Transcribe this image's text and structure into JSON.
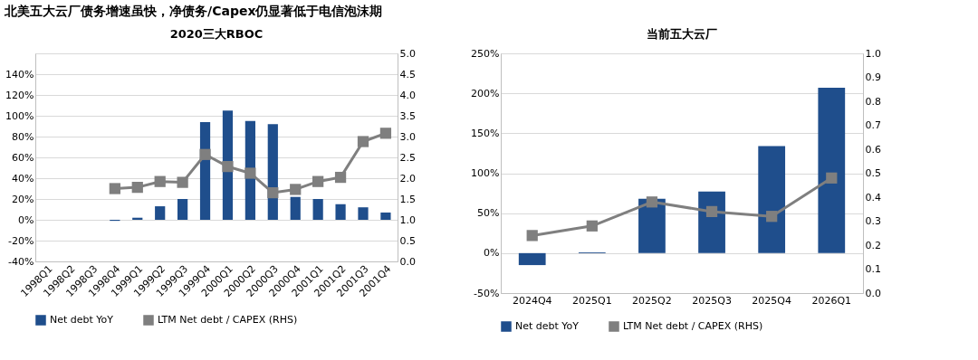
{
  "chart_data": [
    {
      "type": "bar",
      "title": "2020三大RBOC",
      "annotations": [
        "北美五大云厂债务增速虽快，净债务/Capex仍显著低于电信泡沫期"
      ],
      "categories": [
        "1998Q1",
        "1998Q2",
        "1998Q3",
        "1998Q4",
        "1999Q1",
        "1999Q2",
        "1999Q3",
        "1999Q4",
        "2000Q1",
        "2000Q2",
        "2000Q3",
        "2000Q4",
        "2001Q1",
        "2001Q2",
        "2001Q3",
        "2001Q4"
      ],
      "series": [
        {
          "name": "Net debt YoY",
          "color": "#1f4e8c",
          "values": [
            0,
            0,
            0,
            -1,
            2,
            13,
            20,
            94,
            105,
            95,
            92,
            22,
            20,
            15,
            12,
            7
          ]
        },
        {
          "name": "LTM Net debt / CAPEX (RHS)",
          "type": "line",
          "axis": "y2",
          "color": "#7f7f7f",
          "values": [
            null,
            null,
            null,
            1.75,
            1.78,
            1.92,
            1.9,
            2.57,
            2.28,
            2.12,
            1.65,
            1.73,
            1.92,
            2.02,
            2.88,
            3.08
          ]
        }
      ],
      "ylim": [
        -40,
        160
      ],
      "yticks": [
        {
          "value": -40,
          "label": "-40%"
        },
        {
          "value": -20,
          "label": "-20%"
        },
        {
          "value": 0,
          "label": "0%"
        },
        {
          "value": 20,
          "label": "20%"
        },
        {
          "value": 40,
          "label": "40%"
        },
        {
          "value": 60,
          "label": "60%"
        },
        {
          "value": 80,
          "label": "80%"
        },
        {
          "value": 100,
          "label": "100%"
        },
        {
          "value": 120,
          "label": "120%"
        },
        {
          "value": 140,
          "label": "140%"
        },
        {
          "value": 160,
          "label": null
        }
      ],
      "y2lim": [
        0,
        5
      ],
      "y2ticks": [
        {
          "value": 0,
          "label": "0.0"
        },
        {
          "value": 0.5,
          "label": "0.5"
        },
        {
          "value": 1,
          "label": "1.0"
        },
        {
          "value": 1.5,
          "label": "1.5"
        },
        {
          "value": 2,
          "label": "2.0"
        },
        {
          "value": 2.5,
          "label": "2.5"
        },
        {
          "value": 3,
          "label": "3.0"
        },
        {
          "value": 3.5,
          "label": "3.5"
        },
        {
          "value": 4,
          "label": "4.0"
        },
        {
          "value": 4.5,
          "label": "4.5"
        },
        {
          "value": 5,
          "label": "5.0"
        }
      ],
      "grid": "y",
      "legend": "bottom",
      "marker": "square"
    },
    {
      "type": "bar",
      "title": "当前五大云厂",
      "categories": [
        "2024Q4",
        "2025Q1",
        "2025Q2",
        "2025Q3",
        "2025Q4",
        "2026Q1"
      ],
      "series": [
        {
          "name": "Net debt YoY",
          "color": "#1f4e8c",
          "values": [
            -15,
            1,
            68,
            77,
            134,
            207
          ]
        },
        {
          "name": "LTM Net debt / CAPEX (RHS)",
          "type": "line",
          "axis": "y2",
          "color": "#7f7f7f",
          "values": [
            0.24,
            0.28,
            0.38,
            0.34,
            0.32,
            0.48
          ]
        }
      ],
      "ylim": [
        -50,
        250
      ],
      "yticks": [
        {
          "value": -50,
          "label": "-50%"
        },
        {
          "value": 0,
          "label": "0%"
        },
        {
          "value": 50,
          "label": "50%"
        },
        {
          "value": 100,
          "label": "100%"
        },
        {
          "value": 150,
          "label": "150%"
        },
        {
          "value": 200,
          "label": "200%"
        },
        {
          "value": 250,
          "label": "250%"
        }
      ],
      "y2lim": [
        0,
        1
      ],
      "y2ticks": [
        {
          "value": 0,
          "label": "0.0"
        },
        {
          "value": 0.1,
          "label": "0.1"
        },
        {
          "value": 0.2,
          "label": "0.2"
        },
        {
          "value": 0.3,
          "label": "0.3"
        },
        {
          "value": 0.4,
          "label": "0.4"
        },
        {
          "value": 0.5,
          "label": "0.5"
        },
        {
          "value": 0.6,
          "label": "0.6"
        },
        {
          "value": 0.7,
          "label": "0.7"
        },
        {
          "value": 0.8,
          "label": "0.8"
        },
        {
          "value": 0.9,
          "label": "0.9"
        },
        {
          "value": 1,
          "label": "1.0"
        }
      ],
      "grid": "y",
      "legend": "bottom",
      "marker": "square"
    }
  ]
}
